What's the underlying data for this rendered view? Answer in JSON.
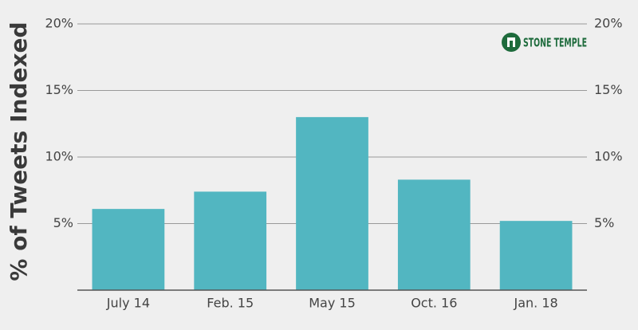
{
  "chart_data": {
    "type": "bar",
    "y_label": "% of Tweets Indexed",
    "brand": "STONE TEMPLE",
    "categories": [
      "July 14",
      "Feb. 15",
      "May 15",
      "Oct. 16",
      "Jan. 18"
    ],
    "values": [
      6.1,
      7.4,
      13.0,
      8.3,
      5.2
    ],
    "color": "#52b6c1",
    "ylim": [
      0,
      20
    ],
    "yticks": [
      {
        "value": 5,
        "label": "5%"
      },
      {
        "value": 10,
        "label": "10%"
      },
      {
        "value": 15,
        "label": "15%"
      },
      {
        "value": 20,
        "label": "20%"
      }
    ],
    "y2lim": [
      0,
      20
    ],
    "y2ticks": [
      {
        "value": 5,
        "label": "5%"
      },
      {
        "value": 10,
        "label": "10%"
      },
      {
        "value": 15,
        "label": "15%"
      },
      {
        "value": 20,
        "label": "20%"
      }
    ],
    "grid": true
  }
}
